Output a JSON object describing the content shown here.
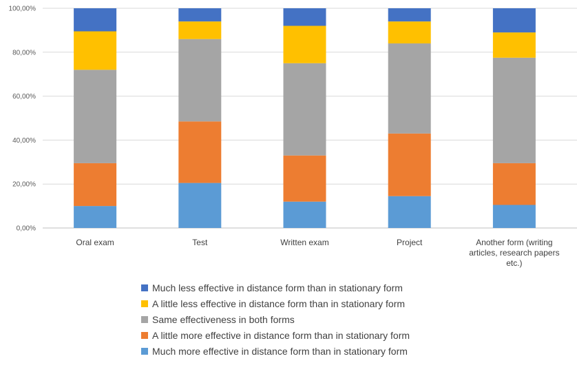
{
  "chart_data": {
    "type": "bar",
    "stacked": true,
    "percent_stacked": true,
    "categories": [
      [
        "Oral exam"
      ],
      [
        "Test"
      ],
      [
        "Written exam"
      ],
      [
        "Project"
      ],
      [
        "Another form (writing",
        "articles, research papers",
        "etc.)"
      ]
    ],
    "y_ticks": [
      "0,00%",
      "20,00%",
      "40,00%",
      "60,00%",
      "80,00%",
      "100,00%"
    ],
    "ylim": [
      0,
      100
    ],
    "grid": true,
    "legend_position": "bottom",
    "series": [
      {
        "name": "Much more effective in distance form than in stationary form",
        "color": "#5b9bd5",
        "values": [
          10.0,
          20.5,
          12.0,
          14.5,
          10.5
        ]
      },
      {
        "name": "A little more effective in distance form than in stationary form",
        "color": "#ed7d31",
        "values": [
          19.5,
          28.0,
          21.0,
          28.5,
          19.0
        ]
      },
      {
        "name": "Same effectiveness in both forms",
        "color": "#a5a5a5",
        "values": [
          42.5,
          37.5,
          42.0,
          41.0,
          48.0
        ]
      },
      {
        "name": "A little less effective in distance form than in stationary form",
        "color": "#ffc000",
        "values": [
          17.5,
          8.0,
          17.0,
          10.0,
          11.5
        ]
      },
      {
        "name": "Much less effective in distance form than in stationary form",
        "color": "#4472c4",
        "values": [
          10.5,
          6.0,
          8.0,
          6.0,
          11.0
        ]
      }
    ]
  }
}
